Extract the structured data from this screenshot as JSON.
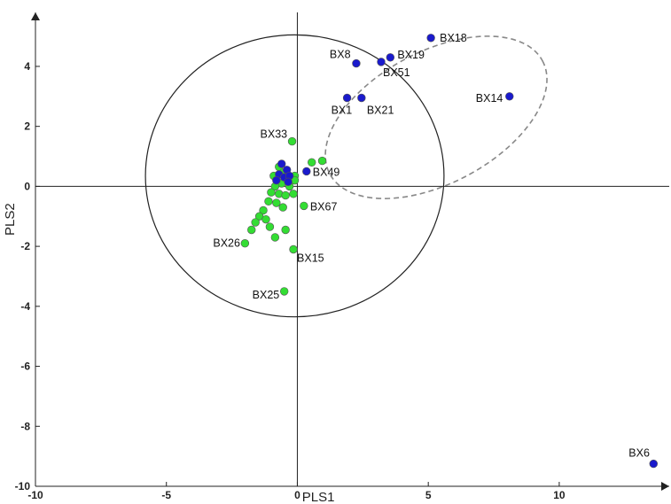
{
  "chart_data": {
    "type": "scatter",
    "xlabel": "PLS1",
    "ylabel": "PLS2",
    "xlim": [
      -10,
      14.2
    ],
    "ylim": [
      -10,
      5.8
    ],
    "x_ticks": [
      -10,
      -5,
      0,
      5,
      10
    ],
    "y_ticks": [
      -10,
      -8,
      -6,
      -4,
      -2,
      0,
      2,
      4
    ],
    "grid": false,
    "colors": {
      "group_blue": "#1a1acc",
      "group_green": "#33dd33",
      "outline": "#555555"
    },
    "reference_ellipse": {
      "type": "confidence-ellipse",
      "center": [
        -0.1,
        0.35
      ],
      "rx": 5.7,
      "ry": 4.7
    },
    "cluster_ellipse": {
      "type": "dashed-ellipse",
      "center": [
        5.3,
        2.3
      ],
      "rx": 4.6,
      "ry": 2.2,
      "rotation_deg": 28
    },
    "series": [
      {
        "color": "#1a1acc",
        "points": [
          {
            "x": 5.1,
            "y": 4.95,
            "label": "BX18"
          },
          {
            "x": 3.55,
            "y": 4.3,
            "label": "BX19"
          },
          {
            "x": 3.2,
            "y": 4.15,
            "label": "BX51"
          },
          {
            "x": 2.25,
            "y": 4.1,
            "label": "BX8"
          },
          {
            "x": 1.9,
            "y": 2.95,
            "label": "BX1"
          },
          {
            "x": 2.45,
            "y": 2.95,
            "label": "BX21"
          },
          {
            "x": 8.1,
            "y": 3.0,
            "label": "BX14"
          },
          {
            "x": 13.6,
            "y": -9.25,
            "label": "BX6"
          },
          {
            "x": 0.35,
            "y": 0.5,
            "label": "BX49"
          },
          {
            "x": -0.6,
            "y": 0.75
          },
          {
            "x": -0.4,
            "y": 0.55
          },
          {
            "x": -0.7,
            "y": 0.4
          },
          {
            "x": -0.5,
            "y": 0.3
          },
          {
            "x": -0.3,
            "y": 0.35
          },
          {
            "x": -0.8,
            "y": 0.2
          },
          {
            "x": -0.35,
            "y": 0.15
          }
        ]
      },
      {
        "color": "#33dd33",
        "points": [
          {
            "x": -0.2,
            "y": 1.5,
            "label": "BX33"
          },
          {
            "x": 0.25,
            "y": -0.65,
            "label": "BX67"
          },
          {
            "x": -0.15,
            "y": -2.1,
            "label": "BX15"
          },
          {
            "x": -2.0,
            "y": -1.9,
            "label": "BX26"
          },
          {
            "x": -0.5,
            "y": -3.5,
            "label": "BX25"
          },
          {
            "x": 0.55,
            "y": 0.8
          },
          {
            "x": 0.95,
            "y": 0.85
          },
          {
            "x": -0.7,
            "y": 0.65
          },
          {
            "x": -0.55,
            "y": 0.45
          },
          {
            "x": -0.9,
            "y": 0.35
          },
          {
            "x": -0.4,
            "y": 0.25
          },
          {
            "x": -0.1,
            "y": 0.35
          },
          {
            "x": -0.6,
            "y": 0.1
          },
          {
            "x": -0.85,
            "y": 0.0
          },
          {
            "x": -0.3,
            "y": 0.0
          },
          {
            "x": -0.1,
            "y": 0.2
          },
          {
            "x": -1.0,
            "y": -0.2
          },
          {
            "x": -0.7,
            "y": -0.25
          },
          {
            "x": -0.45,
            "y": -0.3
          },
          {
            "x": -0.15,
            "y": -0.25
          },
          {
            "x": -1.1,
            "y": -0.5
          },
          {
            "x": -0.8,
            "y": -0.55
          },
          {
            "x": -0.55,
            "y": -0.7
          },
          {
            "x": -1.3,
            "y": -0.8
          },
          {
            "x": -1.45,
            "y": -1.0
          },
          {
            "x": -1.2,
            "y": -1.1
          },
          {
            "x": -1.6,
            "y": -1.2
          },
          {
            "x": -1.75,
            "y": -1.45
          },
          {
            "x": -1.05,
            "y": -1.35
          },
          {
            "x": -0.45,
            "y": -1.45
          },
          {
            "x": -0.85,
            "y": -1.7
          }
        ]
      }
    ]
  }
}
